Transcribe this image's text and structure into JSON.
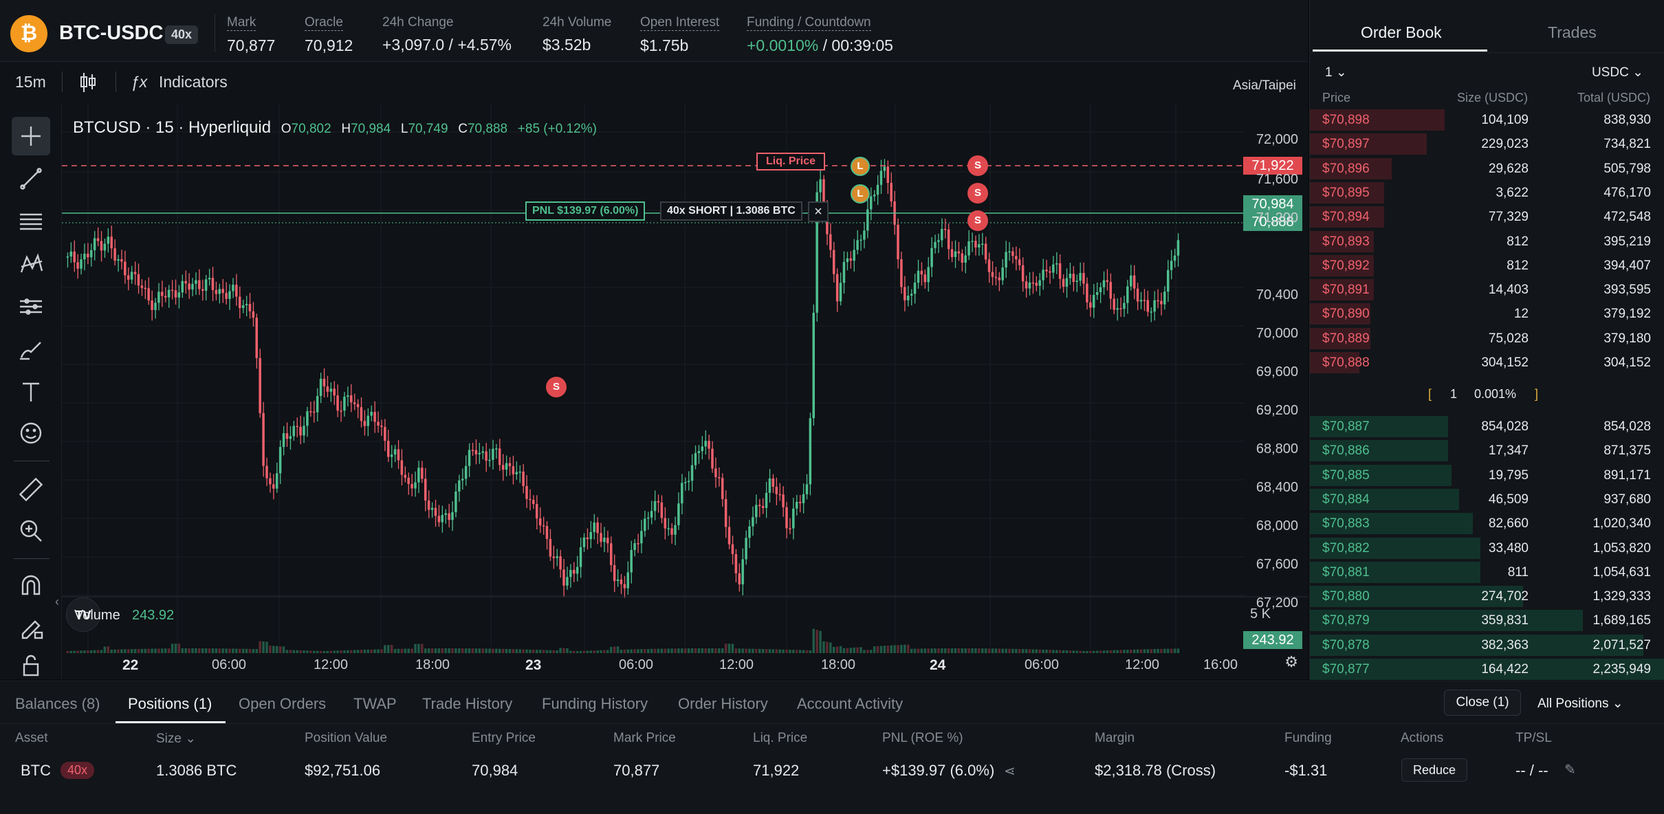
{
  "header": {
    "coin_symbol": "₿",
    "pair": "BTC-USDC",
    "leverage": "40x",
    "stats": [
      {
        "label": "Mark",
        "value": "70,877"
      },
      {
        "label": "Oracle",
        "value": "70,912"
      },
      {
        "label": "24h Change",
        "value": "+3,097.0 / +4.57%"
      },
      {
        "label": "24h Volume",
        "value": "$3.52b"
      },
      {
        "label": "Open Interest",
        "value": "$1.75b"
      },
      {
        "label": "Funding / Countdown",
        "value_funding": "+0.0010%",
        "value_countdown": "/ 00:39:05"
      }
    ]
  },
  "toolbar": {
    "interval": "15m",
    "indicators": "Indicators",
    "timezone": "Asia/Taipei"
  },
  "chart_overlay": {
    "symbol": "BTCUSD · 15 · Hyperliquid",
    "o_label": "O",
    "o": "70,802",
    "h_label": "H",
    "h": "70,984",
    "l_label": "L",
    "l": "70,749",
    "c_label": "C",
    "c": "70,888",
    "change": "+85 (+0.12%)",
    "liq_label": "Liq. Price",
    "pnl_label": "PNL $139.97 (6.00%)",
    "position_label": "40x SHORT | 1.3086 BTC",
    "volume_label": "Volume",
    "volume_value": "243.92",
    "volume_axis": "5 K",
    "marker_l": "L",
    "marker_s": "S"
  },
  "chart_data": {
    "type": "candlestick",
    "y_ticks": [
      "72,000",
      "71,600",
      "71,200",
      "70,400",
      "70,000",
      "69,600",
      "69,200",
      "68,800",
      "68,400",
      "68,000",
      "67,600",
      "67,200"
    ],
    "x_ticks": [
      "22",
      "06:00",
      "12:00",
      "18:00",
      "23",
      "06:00",
      "12:00",
      "18:00",
      "24",
      "06:00",
      "12:00",
      "16:00"
    ],
    "price_tags": {
      "liq": "71,922",
      "entry": "70,984",
      "last": "70,888",
      "volume": "243.92"
    },
    "ylim": [
      66900,
      72150
    ],
    "close_path": [
      70720,
      70740,
      70760,
      70900,
      70950,
      70700,
      70650,
      70520,
      70400,
      70300,
      70380,
      70450,
      70430,
      70520,
      70480,
      70450,
      70420,
      70380,
      70300,
      70250,
      68800,
      68400,
      68900,
      69100,
      69000,
      69250,
      69500,
      69400,
      69300,
      69350,
      69200,
      69150,
      69100,
      68850,
      68700,
      68500,
      68600,
      68300,
      68200,
      68100,
      68500,
      68700,
      68900,
      68750,
      68800,
      68700,
      68600,
      68500,
      68200,
      68000,
      67800,
      67500,
      67700,
      67900,
      68100,
      68000,
      67600,
      67500,
      67800,
      68100,
      68300,
      68200,
      68000,
      68400,
      68700,
      68900,
      68800,
      68500,
      67800,
      67600,
      68100,
      68300,
      68500,
      68400,
      68100,
      68300,
      68500,
      71600,
      71000,
      70400,
      70700,
      70900,
      71100,
      71500,
      71700,
      70900,
      70300,
      70500,
      70600,
      70900,
      71000,
      70800,
      70700,
      71000,
      70800,
      70500,
      70700,
      70800,
      70600,
      70400,
      70600,
      70700,
      70500,
      70600,
      70500,
      70300,
      70500,
      70400,
      70200,
      70500,
      70400,
      70200,
      70300,
      70600,
      70890
    ],
    "volume_bars": [
      1,
      1,
      1,
      1,
      2,
      1,
      1,
      1,
      1,
      1,
      1,
      2,
      1,
      1,
      1,
      1,
      1,
      1,
      1,
      1,
      3,
      2,
      2,
      1,
      1,
      1,
      1,
      1,
      1,
      1,
      1,
      1,
      1,
      2,
      1,
      1,
      2,
      1,
      1,
      1,
      1,
      1,
      1,
      1,
      1,
      1,
      1,
      1,
      1,
      1,
      1,
      2,
      1,
      1,
      1,
      1,
      2,
      1,
      1,
      1,
      1,
      1,
      1,
      1,
      1,
      1,
      1,
      1,
      2,
      1,
      1,
      1,
      1,
      1,
      1,
      1,
      1,
      9,
      5,
      3,
      2,
      2,
      1,
      2,
      2,
      2,
      2,
      1,
      1,
      1,
      1,
      1,
      1,
      1,
      1,
      1,
      1,
      1,
      1,
      1,
      1,
      1,
      1,
      1,
      1,
      1,
      1,
      1,
      1,
      1,
      1,
      1,
      1,
      1,
      1
    ]
  },
  "orderbook": {
    "tabs": [
      "Order Book",
      "Trades"
    ],
    "grouping": "1",
    "unit": "USDC",
    "columns": [
      "Price",
      "Size (USDC)",
      "Total (USDC)"
    ],
    "asks": [
      {
        "price": "$70,898",
        "size": "104,109",
        "total": "838,930",
        "depth": 0.38
      },
      {
        "price": "$70,897",
        "size": "229,023",
        "total": "734,821",
        "depth": 0.33
      },
      {
        "price": "$70,896",
        "size": "29,628",
        "total": "505,798",
        "depth": 0.23
      },
      {
        "price": "$70,895",
        "size": "3,622",
        "total": "476,170",
        "depth": 0.21
      },
      {
        "price": "$70,894",
        "size": "77,329",
        "total": "472,548",
        "depth": 0.21
      },
      {
        "price": "$70,893",
        "size": "812",
        "total": "395,219",
        "depth": 0.18
      },
      {
        "price": "$70,892",
        "size": "812",
        "total": "394,407",
        "depth": 0.18
      },
      {
        "price": "$70,891",
        "size": "14,403",
        "total": "393,595",
        "depth": 0.18
      },
      {
        "price": "$70,890",
        "size": "12",
        "total": "379,192",
        "depth": 0.17
      },
      {
        "price": "$70,889",
        "size": "75,028",
        "total": "379,180",
        "depth": 0.17
      },
      {
        "price": "$70,888",
        "size": "304,152",
        "total": "304,152",
        "depth": 0.14
      }
    ],
    "spread_value": "1",
    "spread_pct": "0.001%",
    "bids": [
      {
        "price": "$70,887",
        "size": "854,028",
        "total": "854,028",
        "depth": 0.39
      },
      {
        "price": "$70,886",
        "size": "17,347",
        "total": "871,375",
        "depth": 0.39
      },
      {
        "price": "$70,885",
        "size": "19,795",
        "total": "891,171",
        "depth": 0.4
      },
      {
        "price": "$70,884",
        "size": "46,509",
        "total": "937,680",
        "depth": 0.42
      },
      {
        "price": "$70,883",
        "size": "82,660",
        "total": "1,020,340",
        "depth": 0.46
      },
      {
        "price": "$70,882",
        "size": "33,480",
        "total": "1,053,820",
        "depth": 0.48
      },
      {
        "price": "$70,881",
        "size": "811",
        "total": "1,054,631",
        "depth": 0.48
      },
      {
        "price": "$70,880",
        "size": "274,702",
        "total": "1,329,333",
        "depth": 0.6
      },
      {
        "price": "$70,879",
        "size": "359,831",
        "total": "1,689,165",
        "depth": 0.77
      },
      {
        "price": "$70,878",
        "size": "382,363",
        "total": "2,071,527",
        "depth": 0.94
      },
      {
        "price": "$70,877",
        "size": "164,422",
        "total": "2,235,949",
        "depth": 1.0
      }
    ]
  },
  "bottom": {
    "tabs": [
      "Balances (8)",
      "Positions (1)",
      "Open Orders",
      "TWAP",
      "Trade History",
      "Funding History",
      "Order History",
      "Account Activity"
    ],
    "close_label": "Close (1)",
    "filter_label": "All Positions",
    "columns": [
      "Asset",
      "Size",
      "Position Value",
      "Entry Price",
      "Mark Price",
      "Liq. Price",
      "PNL (ROE %)",
      "Margin",
      "Funding",
      "Actions",
      "TP/SL"
    ],
    "row": {
      "asset": "BTC",
      "leverage": "40x",
      "size": "1.3086 BTC",
      "position_value": "$92,751.06",
      "entry_price": "70,984",
      "mark_price": "70,877",
      "liq_price": "71,922",
      "pnl": "+$139.97 (6.0%)",
      "margin": "$2,318.78 (Cross)",
      "funding": "-$1.31",
      "action": "Reduce",
      "tpsl": "-- / --"
    }
  },
  "colors": {
    "up": "#4fbf8f",
    "down": "#f0616d",
    "accent": "#ffffff",
    "coin": "#f39a1f"
  }
}
